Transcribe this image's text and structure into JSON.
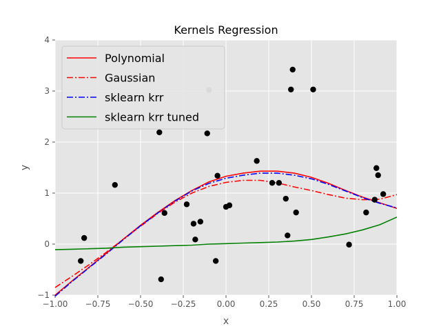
{
  "chart_data": {
    "type": "scatter",
    "title": "Kernels Regression",
    "xlabel": "x",
    "ylabel": "y",
    "xlim": [
      -1.0,
      1.0
    ],
    "ylim": [
      -1,
      4
    ],
    "x_ticks": [
      -1.0,
      -0.75,
      -0.5,
      -0.25,
      0.0,
      0.25,
      0.5,
      0.75,
      1.0
    ],
    "x_tick_labels": [
      "−1.00",
      "−0.75",
      "−0.50",
      "−0.25",
      "0.00",
      "0.25",
      "0.50",
      "0.75",
      "1.00"
    ],
    "y_ticks": [
      -1,
      0,
      1,
      2,
      3,
      4
    ],
    "y_tick_labels": [
      "−1",
      "0",
      "1",
      "2",
      "3",
      "4"
    ],
    "grid": true,
    "legend_position": "top-left",
    "background": "#e5e5e5",
    "points": [
      {
        "x": -0.85,
        "y": -0.33
      },
      {
        "x": -0.83,
        "y": 0.12
      },
      {
        "x": -0.65,
        "y": 1.16
      },
      {
        "x": -0.39,
        "y": 2.19
      },
      {
        "x": -0.38,
        "y": -0.69
      },
      {
        "x": -0.36,
        "y": 0.61
      },
      {
        "x": -0.23,
        "y": 0.78
      },
      {
        "x": -0.19,
        "y": 0.4
      },
      {
        "x": -0.18,
        "y": 0.09
      },
      {
        "x": -0.15,
        "y": 0.44
      },
      {
        "x": -0.11,
        "y": 2.17
      },
      {
        "x": -0.1,
        "y": 3.02,
        "faded": true
      },
      {
        "x": -0.06,
        "y": -0.33
      },
      {
        "x": -0.05,
        "y": 1.34
      },
      {
        "x": 0.0,
        "y": 0.73
      },
      {
        "x": 0.02,
        "y": 0.76
      },
      {
        "x": 0.18,
        "y": 1.63
      },
      {
        "x": 0.27,
        "y": 1.2
      },
      {
        "x": 0.31,
        "y": 1.2
      },
      {
        "x": 0.35,
        "y": 0.89
      },
      {
        "x": 0.36,
        "y": 0.17
      },
      {
        "x": 0.38,
        "y": 3.03
      },
      {
        "x": 0.39,
        "y": 3.42
      },
      {
        "x": 0.41,
        "y": 0.62
      },
      {
        "x": 0.51,
        "y": 3.03
      },
      {
        "x": 0.72,
        "y": -0.01
      },
      {
        "x": 0.82,
        "y": 0.62
      },
      {
        "x": 0.87,
        "y": 0.87
      },
      {
        "x": 0.88,
        "y": 1.49
      },
      {
        "x": 0.89,
        "y": 1.35
      },
      {
        "x": 0.92,
        "y": 0.98
      }
    ],
    "series": [
      {
        "name": "Polynomial",
        "color": "#ff0000",
        "dash": "solid",
        "x": [
          -1.0,
          -0.9,
          -0.8,
          -0.7,
          -0.6,
          -0.5,
          -0.4,
          -0.3,
          -0.2,
          -0.1,
          0.0,
          0.1,
          0.2,
          0.3,
          0.4,
          0.5,
          0.6,
          0.7,
          0.8,
          0.9,
          1.0
        ],
        "y": [
          -1.0,
          -0.72,
          -0.45,
          -0.18,
          0.1,
          0.37,
          0.62,
          0.85,
          1.05,
          1.22,
          1.33,
          1.39,
          1.43,
          1.43,
          1.39,
          1.31,
          1.19,
          1.05,
          0.92,
          0.81,
          0.7
        ]
      },
      {
        "name": "Gaussian",
        "color": "#ff0000",
        "dash": "dashdot",
        "x": [
          -1.0,
          -0.9,
          -0.8,
          -0.7,
          -0.6,
          -0.5,
          -0.4,
          -0.3,
          -0.2,
          -0.1,
          0.0,
          0.1,
          0.2,
          0.3,
          0.4,
          0.5,
          0.6,
          0.7,
          0.8,
          0.9,
          1.0
        ],
        "y": [
          -0.85,
          -0.63,
          -0.4,
          -0.16,
          0.1,
          0.35,
          0.6,
          0.82,
          1.0,
          1.13,
          1.21,
          1.25,
          1.25,
          1.2,
          1.12,
          1.05,
          0.97,
          0.9,
          0.87,
          0.88,
          0.97
        ]
      },
      {
        "name": "sklearn krr",
        "color": "#0000ff",
        "dash": "dashdot",
        "x": [
          -1.0,
          -0.9,
          -0.8,
          -0.7,
          -0.6,
          -0.5,
          -0.4,
          -0.3,
          -0.2,
          -0.1,
          0.0,
          0.1,
          0.2,
          0.3,
          0.4,
          0.5,
          0.6,
          0.7,
          0.8,
          0.9,
          1.0
        ],
        "y": [
          -1.02,
          -0.73,
          -0.46,
          -0.19,
          0.09,
          0.36,
          0.61,
          0.84,
          1.04,
          1.19,
          1.29,
          1.35,
          1.39,
          1.39,
          1.35,
          1.28,
          1.17,
          1.04,
          0.91,
          0.8,
          0.71
        ]
      },
      {
        "name": "sklearn krr tuned",
        "color": "#008000",
        "dash": "solid",
        "x": [
          -1.0,
          -0.9,
          -0.8,
          -0.7,
          -0.6,
          -0.5,
          -0.4,
          -0.3,
          -0.2,
          -0.1,
          0.0,
          0.1,
          0.2,
          0.3,
          0.4,
          0.5,
          0.6,
          0.7,
          0.8,
          0.9,
          1.0
        ],
        "y": [
          -0.11,
          -0.1,
          -0.09,
          -0.08,
          -0.06,
          -0.05,
          -0.04,
          -0.03,
          -0.02,
          0.0,
          0.01,
          0.02,
          0.03,
          0.04,
          0.06,
          0.09,
          0.14,
          0.2,
          0.28,
          0.38,
          0.53
        ]
      }
    ]
  }
}
